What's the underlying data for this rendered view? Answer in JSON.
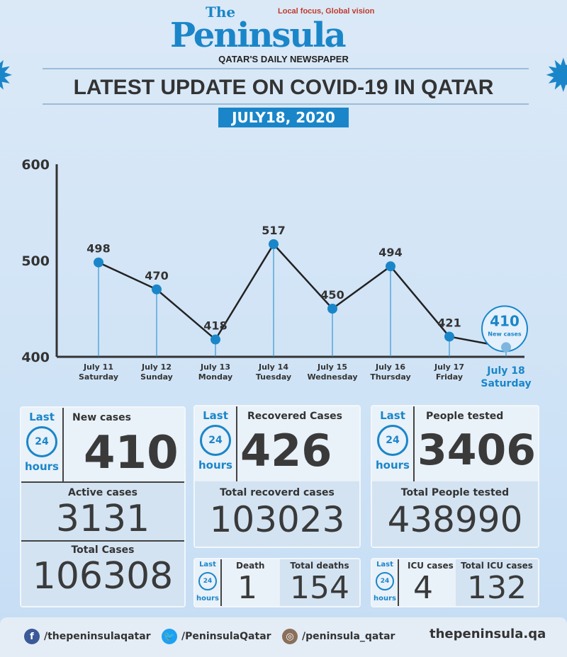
{
  "header": {
    "logo_the": "The",
    "logo_name": "Peninsula",
    "logo_tagline": "Local focus, Global vision",
    "logo_subtitle": "QATAR'S DAILY NEWSPAPER",
    "title": "LATEST UPDATE ON COVID-19 IN QATAR",
    "date": "JULY18, 2020"
  },
  "chart_data": {
    "type": "line",
    "title": "",
    "xlabel": "",
    "ylabel": "New cases",
    "ylim": [
      400,
      600
    ],
    "yticks": [
      400,
      500,
      600
    ],
    "categories": [
      [
        "July 11",
        "Saturday"
      ],
      [
        "July 12",
        "Sunday"
      ],
      [
        "July 13",
        "Monday"
      ],
      [
        "July 14",
        "Tuesday"
      ],
      [
        "July 15",
        "Wednesday"
      ],
      [
        "July 16",
        "Thursday"
      ],
      [
        "July 17",
        "Friday"
      ],
      [
        "July 18",
        "Saturday"
      ]
    ],
    "values": [
      498,
      470,
      418,
      517,
      450,
      494,
      421,
      410
    ],
    "highlight_label": "New cases"
  },
  "cards": {
    "last": "Last",
    "hours": "hours",
    "clock": "24",
    "new_cases": {
      "label": "New cases",
      "value": "410"
    },
    "active": {
      "label": "Active cases",
      "value": "3131"
    },
    "total": {
      "label": "Total Cases",
      "value": "106308"
    },
    "recovered": {
      "label": "Recovered Cases",
      "value": "426"
    },
    "total_recovered": {
      "label": "Total recoverd cases",
      "value": "103023"
    },
    "tested": {
      "label": "People tested",
      "value": "3406"
    },
    "total_tested": {
      "label": "Total People tested",
      "value": "438990"
    },
    "death": {
      "label": "Death",
      "value": "1"
    },
    "total_deaths": {
      "label": "Total deaths",
      "value": "154"
    },
    "icu": {
      "label": "ICU cases",
      "value": "4"
    },
    "total_icu": {
      "label": "Total ICU cases",
      "value": "132"
    }
  },
  "footer": {
    "facebook": "/thepeninsulaqatar",
    "twitter": "/PeninsulaQatar",
    "instagram": "/peninsula_qatar",
    "website": "thepeninsula.qa"
  },
  "colors": {
    "accent": "#1a86c9",
    "text": "#3a3a3a"
  }
}
